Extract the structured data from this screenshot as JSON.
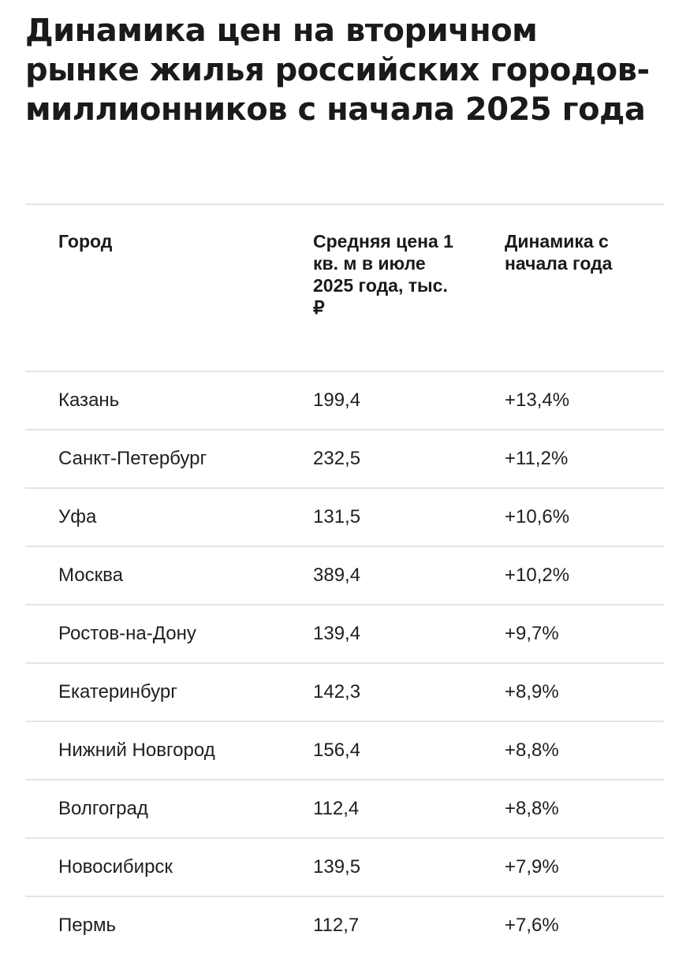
{
  "title": "Динамика цен на вторичном рынке жилья российских городов-миллионников с начала 2025 года",
  "table": {
    "headers": [
      "Город",
      "Средняя цена 1 кв. м в июле 2025 года, тыс. ₽",
      "Динамика с начала года"
    ],
    "rows": [
      {
        "city": "Казань",
        "price": "199,4",
        "change": "+13,4%"
      },
      {
        "city": "Санкт-Петербург",
        "price": "232,5",
        "change": "+11,2%"
      },
      {
        "city": "Уфа",
        "price": "131,5",
        "change": "+10,6%"
      },
      {
        "city": "Москва",
        "price": "389,4",
        "change": "+10,2%"
      },
      {
        "city": "Ростов-на-Дону",
        "price": "139,4",
        "change": "+9,7%"
      },
      {
        "city": "Екатеринбург",
        "price": "142,3",
        "change": "+8,9%"
      },
      {
        "city": "Нижний Новгород",
        "price": "156,4",
        "change": "+8,8%"
      },
      {
        "city": "Волгоград",
        "price": "112,4",
        "change": "+8,8%"
      },
      {
        "city": "Новосибирск",
        "price": "139,5",
        "change": "+7,9%"
      },
      {
        "city": "Пермь",
        "price": "112,7",
        "change": "+7,6%"
      }
    ]
  }
}
